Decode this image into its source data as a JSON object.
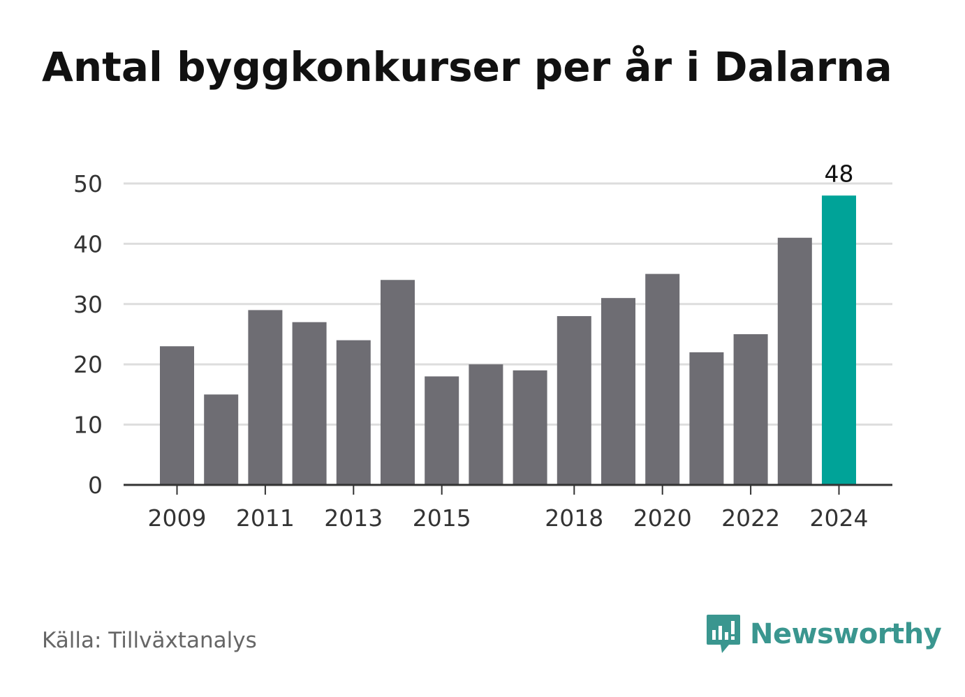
{
  "title": "Antal byggkonkurser per år i Dalarna",
  "source": "Källa: Tillväxtanalys",
  "brand": {
    "name": "Newsworthy",
    "icon": "newsworthy-logo-icon",
    "color": "#3a968f"
  },
  "chart_data": {
    "type": "bar",
    "categories": [
      "2009",
      "2010",
      "2011",
      "2012",
      "2013",
      "2014",
      "2015",
      "2016",
      "2017",
      "2018",
      "2019",
      "2020",
      "2021",
      "2022",
      "2023",
      "2024"
    ],
    "values": [
      23,
      15,
      29,
      27,
      24,
      34,
      18,
      20,
      19,
      28,
      31,
      35,
      22,
      25,
      41,
      48
    ],
    "x_tick_labels": [
      "2009",
      "2011",
      "2013",
      "2015",
      "2018",
      "2020",
      "2022",
      "2024"
    ],
    "y_ticks": [
      0,
      10,
      20,
      30,
      40,
      50
    ],
    "ylim": [
      0,
      50
    ],
    "grid": true,
    "highlight": {
      "category": "2024",
      "label": "48",
      "color": "#00a398"
    },
    "bar_color": "#6e6d73",
    "axis_color": "#333333",
    "grid_color": "#dddddd"
  }
}
